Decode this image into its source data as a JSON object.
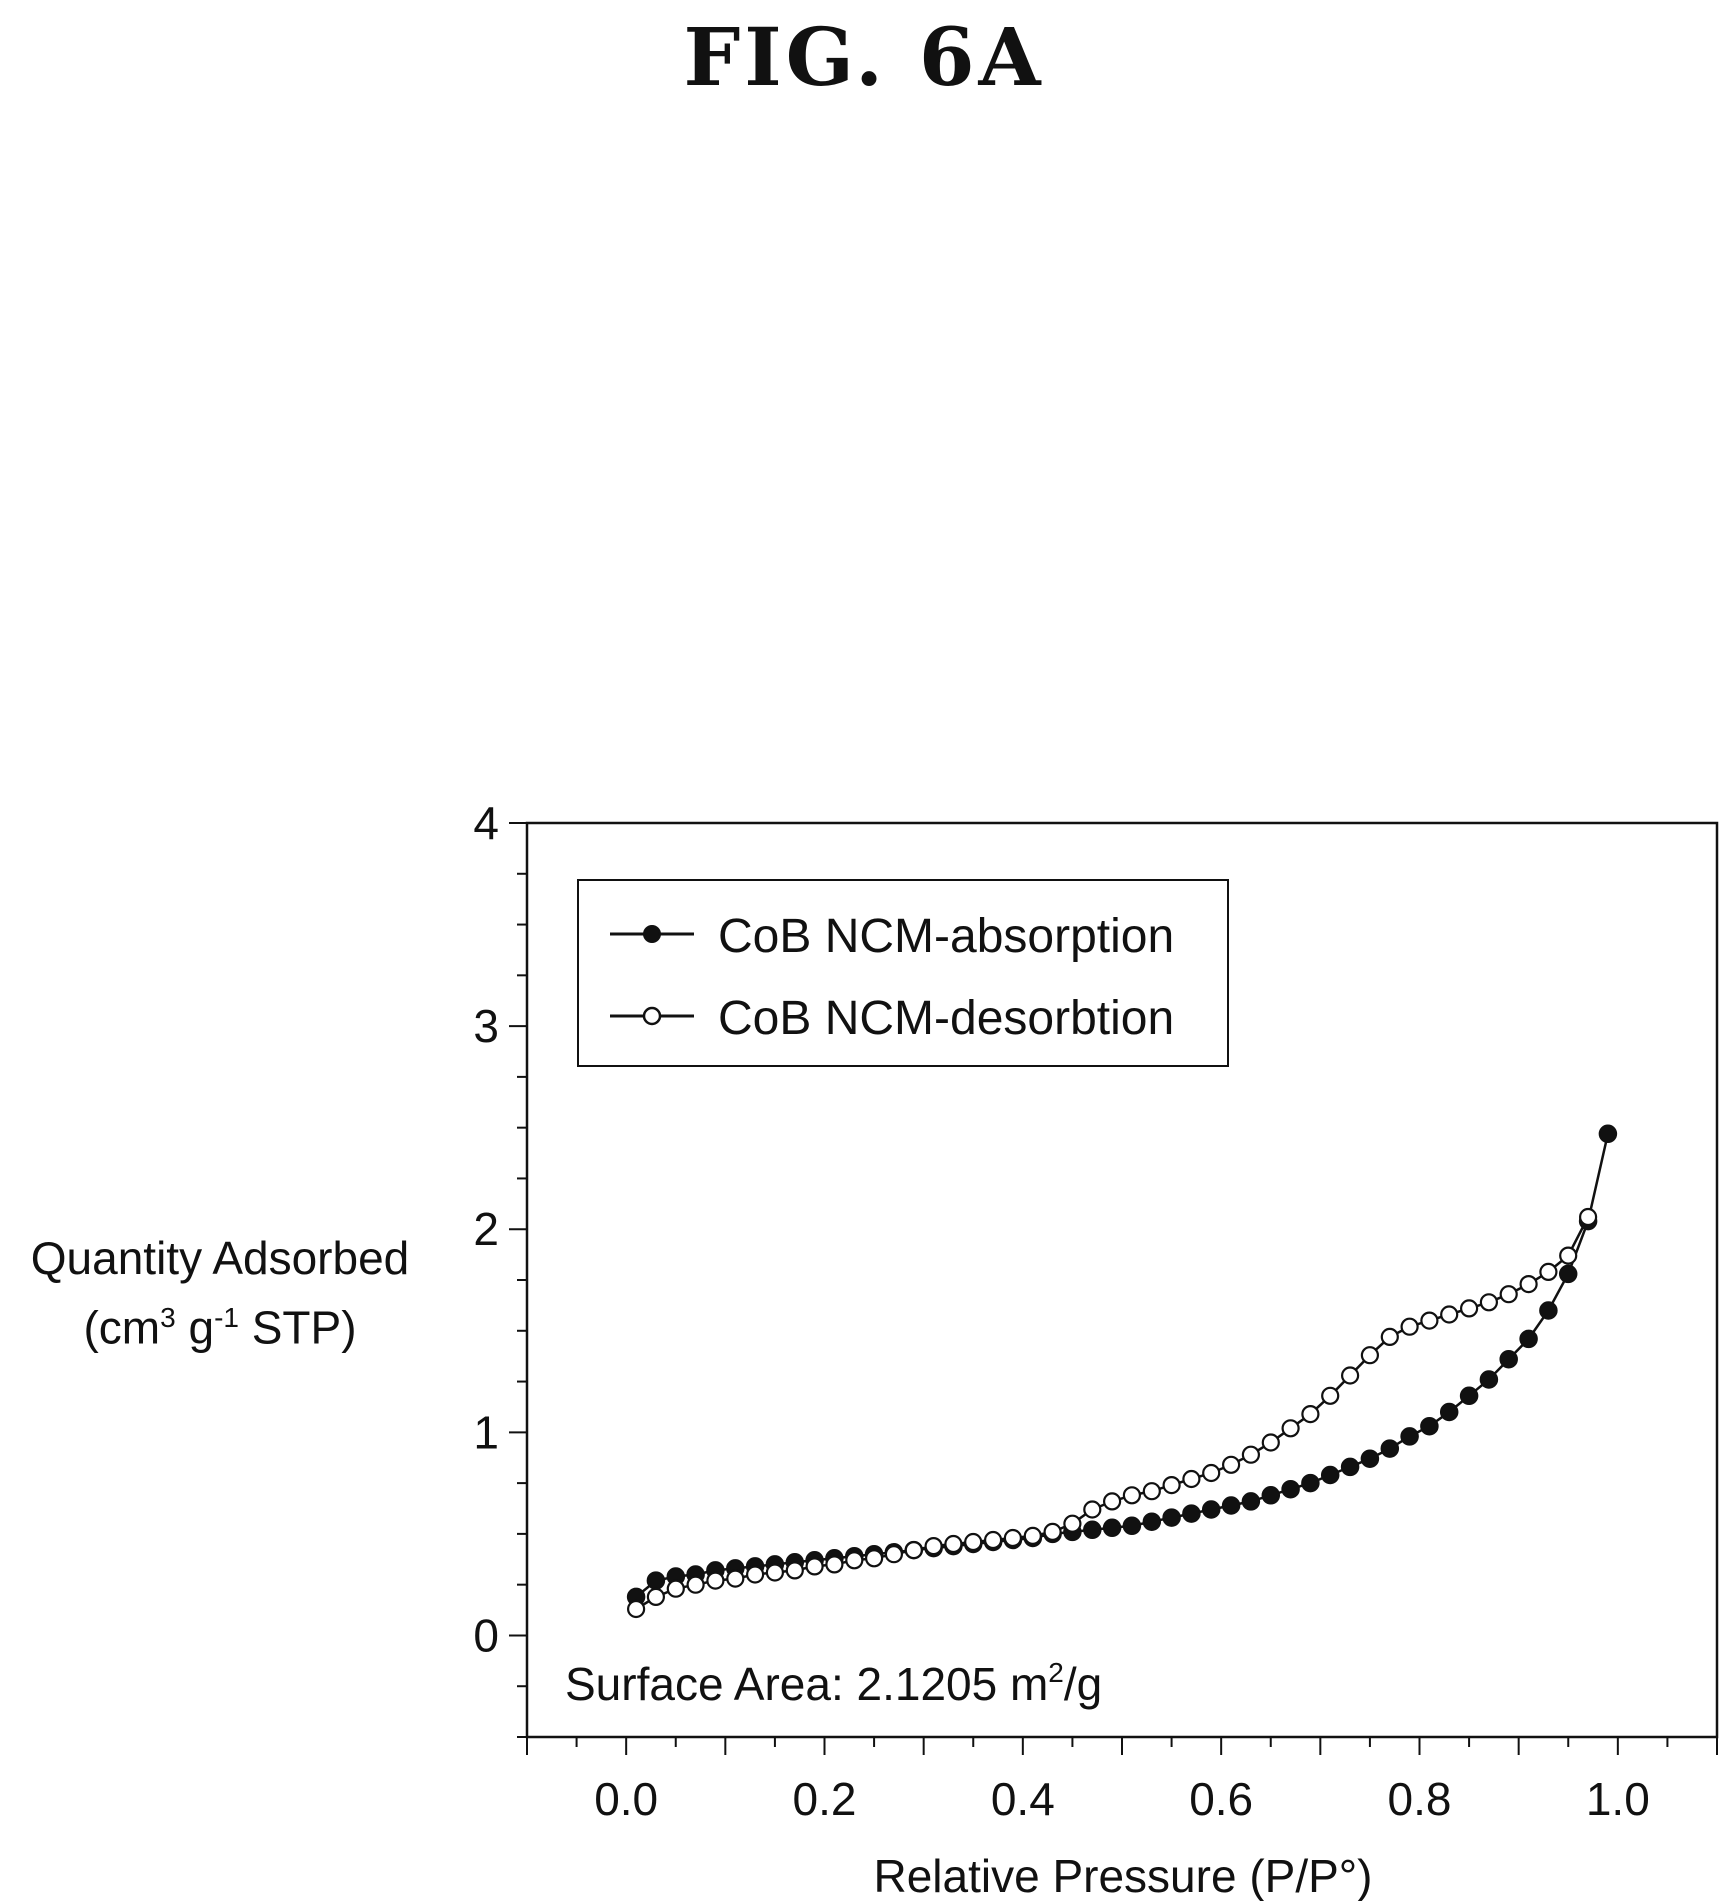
{
  "figure_title": "FIG. 6A",
  "chart_data": {
    "type": "scatter",
    "title": "",
    "xlabel": "Relative Pressure (P/P°)",
    "ylabel_line1": "Quantity Adsorbed",
    "ylabel_unit": {
      "open": "(cm",
      "sup1": "3",
      "mid": " g",
      "sup2": "-1",
      "close": " STP)"
    },
    "xlim": [
      -0.1,
      1.1
    ],
    "ylim": [
      -0.5,
      4
    ],
    "xticks": [
      0.0,
      0.2,
      0.4,
      0.6,
      0.8,
      1.0
    ],
    "xtick_labels": [
      "0.0",
      "0.2",
      "0.4",
      "0.6",
      "0.8",
      "1.0"
    ],
    "yticks": [
      0,
      1,
      2,
      3,
      4
    ],
    "ytick_labels": [
      "0",
      "1",
      "2",
      "3",
      "4"
    ],
    "legend_position": "top-left",
    "annotation": {
      "text": "Surface Area: 2.1205 m",
      "sup": "2",
      "suffix": "/g"
    },
    "series": [
      {
        "name": "CoB NCM-absorption",
        "marker": "filled-circle",
        "color": "#111111",
        "x": [
          0.01,
          0.03,
          0.05,
          0.07,
          0.09,
          0.11,
          0.13,
          0.15,
          0.17,
          0.19,
          0.21,
          0.23,
          0.25,
          0.27,
          0.29,
          0.31,
          0.33,
          0.35,
          0.37,
          0.39,
          0.41,
          0.43,
          0.45,
          0.47,
          0.49,
          0.51,
          0.53,
          0.55,
          0.57,
          0.59,
          0.61,
          0.63,
          0.65,
          0.67,
          0.69,
          0.71,
          0.73,
          0.75,
          0.77,
          0.79,
          0.81,
          0.83,
          0.85,
          0.87,
          0.89,
          0.91,
          0.93,
          0.95,
          0.97,
          0.99
        ],
        "y": [
          0.19,
          0.27,
          0.29,
          0.3,
          0.32,
          0.33,
          0.34,
          0.35,
          0.36,
          0.37,
          0.38,
          0.39,
          0.4,
          0.41,
          0.42,
          0.43,
          0.44,
          0.45,
          0.46,
          0.47,
          0.48,
          0.5,
          0.51,
          0.52,
          0.53,
          0.54,
          0.56,
          0.58,
          0.6,
          0.62,
          0.64,
          0.66,
          0.69,
          0.72,
          0.75,
          0.79,
          0.83,
          0.87,
          0.92,
          0.98,
          1.03,
          1.1,
          1.18,
          1.26,
          1.36,
          1.46,
          1.6,
          1.78,
          2.04,
          2.47
        ]
      },
      {
        "name": "CoB NCM-desorbtion",
        "marker": "open-circle",
        "color": "#111111",
        "x": [
          0.01,
          0.03,
          0.05,
          0.07,
          0.09,
          0.11,
          0.13,
          0.15,
          0.17,
          0.19,
          0.21,
          0.23,
          0.25,
          0.27,
          0.29,
          0.31,
          0.33,
          0.35,
          0.37,
          0.39,
          0.41,
          0.43,
          0.45,
          0.47,
          0.49,
          0.51,
          0.53,
          0.55,
          0.57,
          0.59,
          0.61,
          0.63,
          0.65,
          0.67,
          0.69,
          0.71,
          0.73,
          0.75,
          0.77,
          0.79,
          0.81,
          0.83,
          0.85,
          0.87,
          0.89,
          0.91,
          0.93,
          0.95,
          0.97
        ],
        "y": [
          0.13,
          0.19,
          0.23,
          0.25,
          0.27,
          0.28,
          0.3,
          0.31,
          0.32,
          0.34,
          0.35,
          0.37,
          0.38,
          0.4,
          0.42,
          0.44,
          0.45,
          0.46,
          0.47,
          0.48,
          0.49,
          0.51,
          0.55,
          0.62,
          0.66,
          0.69,
          0.71,
          0.74,
          0.77,
          0.8,
          0.84,
          0.89,
          0.95,
          1.02,
          1.09,
          1.18,
          1.28,
          1.38,
          1.47,
          1.52,
          1.55,
          1.58,
          1.61,
          1.64,
          1.68,
          1.73,
          1.79,
          1.87,
          2.06
        ]
      }
    ]
  }
}
